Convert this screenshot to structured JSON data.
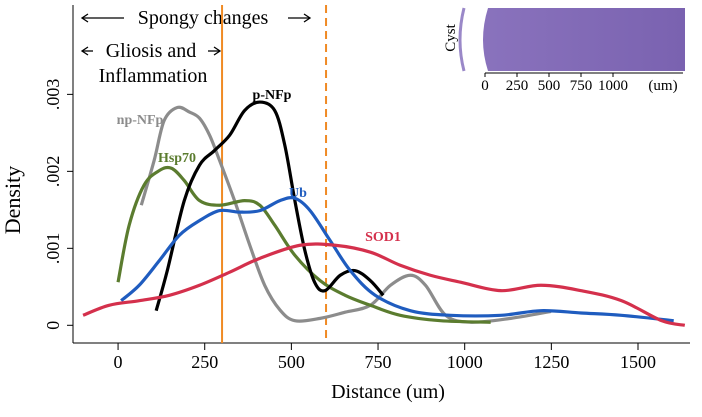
{
  "chart_data": {
    "type": "line",
    "x_label": "Distance (um)",
    "y_label": "Density",
    "xlim": [
      -130,
      1650
    ],
    "ylim": [
      -0.00023,
      0.0042
    ],
    "xticks": [
      0,
      250,
      500,
      750,
      1000,
      1250,
      1500
    ],
    "yticks": [
      0,
      {
        "value": 0.001,
        "label": ".001"
      },
      {
        "value": 0.002,
        "label": ".002"
      },
      {
        "value": 0.003,
        "label": ".003"
      }
    ],
    "vlines": [
      {
        "x": 300,
        "color": "#f08a24",
        "style": "solid"
      },
      {
        "x": 600,
        "color": "#f08a24",
        "style": "dashed"
      }
    ],
    "annotations": [
      "Spongy changes",
      "Gliosis and",
      "Inflammation"
    ],
    "inset": {
      "label": "Cyst",
      "ticks": [
        0,
        250,
        500,
        750,
        1000
      ],
      "unit": "(um)"
    },
    "series": [
      {
        "name": "np-NFp",
        "color": "#8c8c8c",
        "x": [
          67,
          104,
          133,
          171,
          206,
          235,
          264,
          293,
          336,
          380,
          423,
          467,
          510,
          583,
          655,
          728,
          786,
          843,
          887,
          945,
          1017,
          1133,
          1249
        ],
        "values": [
          0.00156,
          0.00214,
          0.00266,
          0.00283,
          0.00277,
          0.00269,
          0.00247,
          0.00214,
          0.00162,
          0.00104,
          0.00052,
          0.0002,
          6e-05,
          9e-05,
          0.00017,
          0.00026,
          0.00052,
          0.00065,
          0.00052,
          0.00013,
          4e-05,
          9e-05,
          0.00018
        ]
      },
      {
        "name": "Hsp70",
        "color": "#5b7c2f",
        "x": [
          0,
          32,
          75,
          119,
          154,
          191,
          235,
          293,
          365,
          409,
          452,
          510,
          583,
          655,
          728,
          814,
          930,
          1075
        ],
        "values": [
          0.00056,
          0.0013,
          0.00182,
          0.00201,
          0.00204,
          0.00188,
          0.00162,
          0.00156,
          0.00162,
          0.00156,
          0.0013,
          0.00091,
          0.00058,
          0.00039,
          0.00026,
          0.00013,
          6e-05,
          4e-05
        ]
      },
      {
        "name": "p-NFp",
        "color": "#000000",
        "x": [
          110,
          142,
          191,
          235,
          278,
          322,
          365,
          409,
          452,
          481,
          510,
          539,
          568,
          597,
          641,
          684,
          728,
          765
        ],
        "values": [
          0.00019,
          0.00071,
          0.00162,
          0.00208,
          0.00227,
          0.00247,
          0.00279,
          0.0029,
          0.00279,
          0.00234,
          0.00162,
          0.00097,
          0.00055,
          0.00045,
          0.00065,
          0.00071,
          0.00058,
          0.00039
        ]
      },
      {
        "name": "Ub",
        "color": "#1f5cbf",
        "x": [
          9,
          61,
          119,
          177,
          235,
          293,
          351,
          409,
          467,
          510,
          554,
          612,
          670,
          742,
          843,
          959,
          1104,
          1220,
          1336,
          1452,
          1603
        ],
        "values": [
          0.00032,
          0.00052,
          0.00084,
          0.00117,
          0.00136,
          0.00149,
          0.00147,
          0.00149,
          0.00162,
          0.00165,
          0.00149,
          0.0011,
          0.00071,
          0.00039,
          0.00019,
          0.00013,
          0.00013,
          0.00019,
          0.00016,
          0.00013,
          6e-05
        ]
      },
      {
        "name": "SOD1",
        "color": "#d4304c",
        "x": [
          -101,
          -26,
          61,
          148,
          235,
          322,
          409,
          525,
          626,
          728,
          814,
          901,
          988,
          1104,
          1220,
          1336,
          1452,
          1568,
          1635
        ],
        "values": [
          0.00013,
          0.00026,
          0.00032,
          0.00039,
          0.00052,
          0.00069,
          0.00087,
          0.00104,
          0.00104,
          0.00095,
          0.00078,
          0.00065,
          0.00056,
          0.00045,
          0.00052,
          0.00045,
          0.00032,
          6e-05,
          0
        ]
      }
    ]
  }
}
